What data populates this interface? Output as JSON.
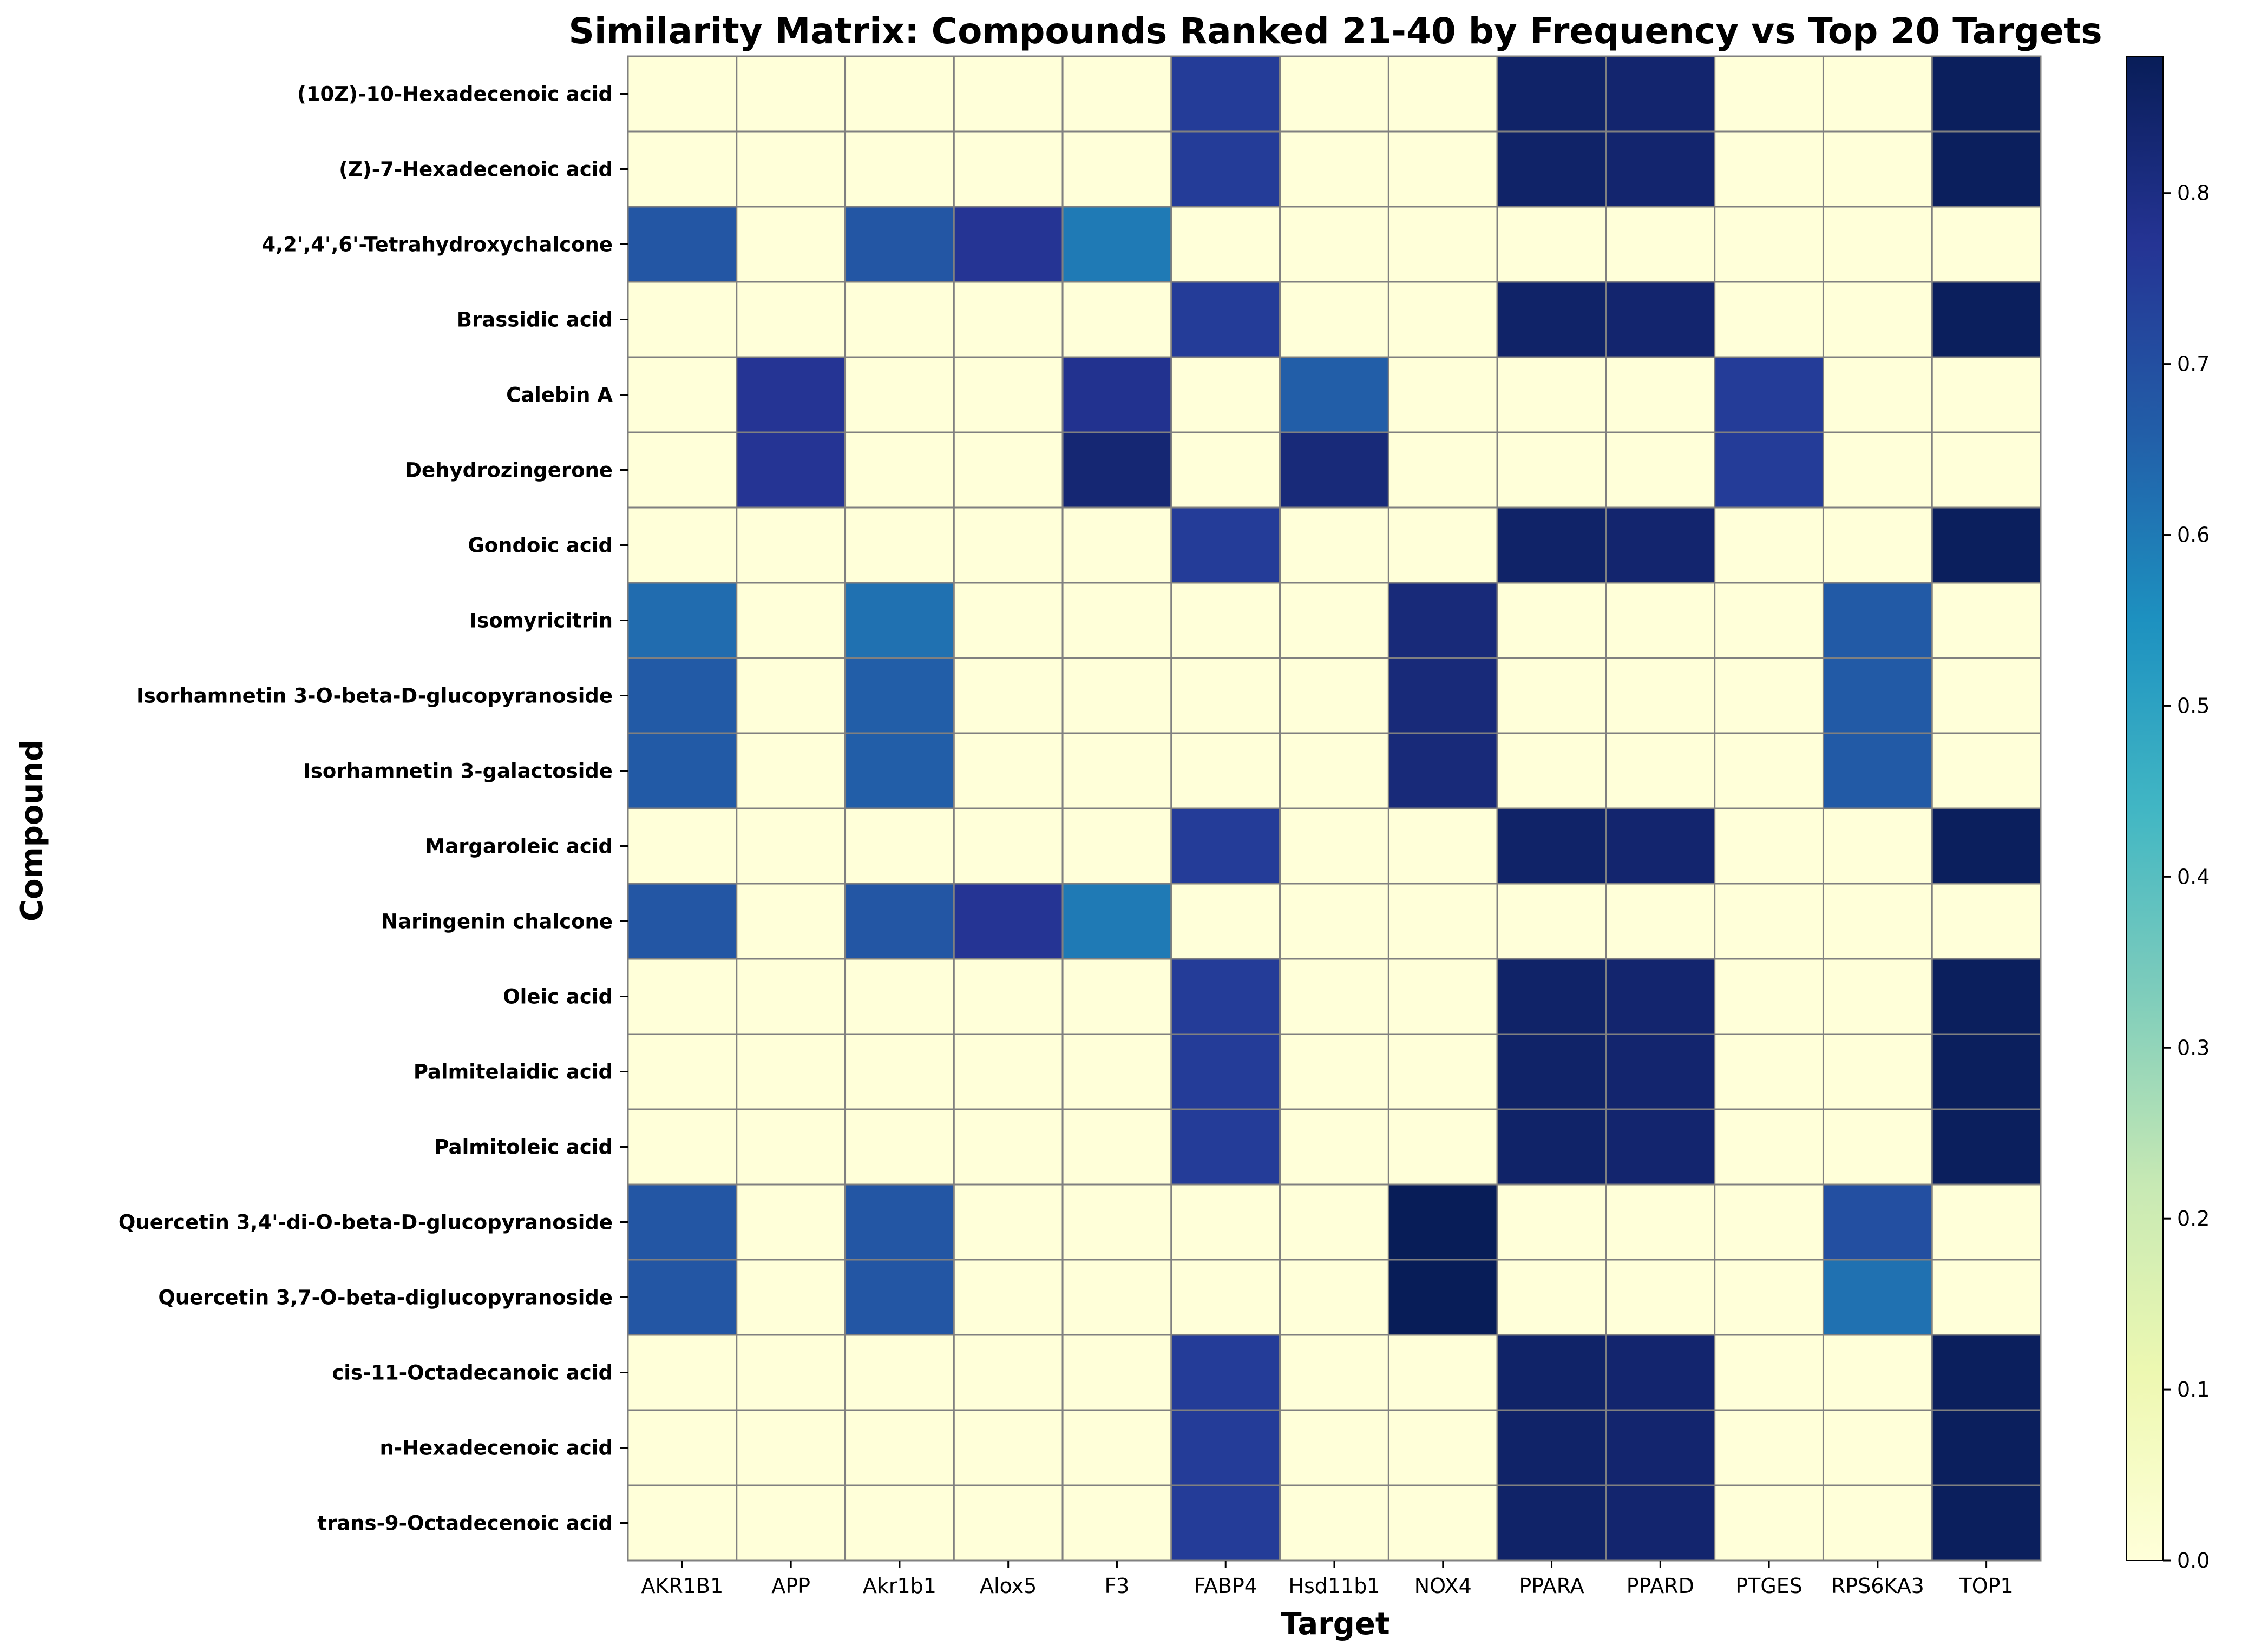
{
  "chart_data": {
    "type": "heatmap",
    "title": "Similarity Matrix: Compounds Ranked 21-40 by Frequency vs Top 20 Targets",
    "xlabel": "Target",
    "ylabel": "Compound",
    "colormap": "YlGnBu",
    "vmin": 0,
    "vmax": 0.88,
    "colorbar_ticks": [
      "0.0",
      "0.1",
      "0.2",
      "0.3",
      "0.4",
      "0.5",
      "0.6",
      "0.7",
      "0.8"
    ],
    "colorbar_tick_values": [
      0,
      0.1,
      0.2,
      0.3,
      0.4,
      0.5,
      0.6,
      0.7,
      0.8
    ],
    "cell_border_color": "#808080",
    "targets": [
      "AKR1B1",
      "APP",
      "Akr1b1",
      "Alox5",
      "F3",
      "FABP4",
      "Hsd11b1",
      "NOX4",
      "PPARA",
      "PPARD",
      "PTGES",
      "RPS6KA3",
      "TOP1"
    ],
    "compounds": [
      "(10Z)-10-Hexadecenoic acid",
      "(Z)-7-Hexadecenoic acid",
      "4,2',4',6'-Tetrahydroxychalcone",
      "Brassidic acid",
      "Calebin A",
      "Dehydrozingerone",
      "Gondoic acid",
      "Isomyricitrin",
      "Isorhamnetin 3-O-beta-D-glucopyranoside",
      "Isorhamnetin 3-galactoside",
      "Margaroleic acid",
      "Naringenin chalcone",
      "Oleic acid",
      "Palmitelaidic acid",
      "Palmitoleic acid",
      "Quercetin 3,4'-di-O-beta-D-glucopyranoside",
      "Quercetin 3,7-O-beta-diglucopyranoside",
      "cis-11-Octadecanoic acid",
      "n-Hexadecenoic acid",
      "trans-9-Octadecenoic acid"
    ],
    "values": [
      [
        0,
        0,
        0,
        0,
        0,
        0.75,
        0,
        0,
        0.85,
        0.84,
        0,
        0,
        0.87
      ],
      [
        0,
        0,
        0,
        0,
        0,
        0.75,
        0,
        0,
        0.85,
        0.84,
        0,
        0,
        0.87
      ],
      [
        0.68,
        0,
        0.68,
        0.77,
        0.6,
        0,
        0,
        0,
        0,
        0,
        0,
        0,
        0
      ],
      [
        0,
        0,
        0,
        0,
        0,
        0.75,
        0,
        0,
        0.85,
        0.84,
        0,
        0,
        0.87
      ],
      [
        0,
        0.77,
        0,
        0,
        0.78,
        0,
        0.66,
        0,
        0,
        0,
        0.75,
        0,
        0
      ],
      [
        0,
        0.77,
        0,
        0,
        0.83,
        0,
        0.82,
        0,
        0,
        0,
        0.75,
        0,
        0
      ],
      [
        0,
        0,
        0,
        0,
        0,
        0.75,
        0,
        0,
        0.85,
        0.84,
        0,
        0,
        0.87
      ],
      [
        0.63,
        0,
        0.62,
        0,
        0,
        0,
        0,
        0.82,
        0,
        0,
        0,
        0.67,
        0
      ],
      [
        0.67,
        0,
        0.66,
        0,
        0,
        0,
        0,
        0.82,
        0,
        0,
        0,
        0.67,
        0
      ],
      [
        0.67,
        0,
        0.66,
        0,
        0,
        0,
        0,
        0.82,
        0,
        0,
        0,
        0.67,
        0
      ],
      [
        0,
        0,
        0,
        0,
        0,
        0.75,
        0,
        0,
        0.85,
        0.84,
        0,
        0,
        0.87
      ],
      [
        0.68,
        0,
        0.68,
        0.77,
        0.6,
        0,
        0,
        0,
        0,
        0,
        0,
        0,
        0
      ],
      [
        0,
        0,
        0,
        0,
        0,
        0.75,
        0,
        0,
        0.85,
        0.84,
        0,
        0,
        0.87
      ],
      [
        0,
        0,
        0,
        0,
        0,
        0.75,
        0,
        0,
        0.85,
        0.84,
        0,
        0,
        0.87
      ],
      [
        0,
        0,
        0,
        0,
        0,
        0.75,
        0,
        0,
        0.85,
        0.84,
        0,
        0,
        0.87
      ],
      [
        0.68,
        0,
        0.68,
        0,
        0,
        0,
        0,
        0.88,
        0,
        0,
        0,
        0.7,
        0
      ],
      [
        0.68,
        0,
        0.68,
        0,
        0,
        0,
        0,
        0.88,
        0,
        0,
        0,
        0.62,
        0
      ],
      [
        0,
        0,
        0,
        0,
        0,
        0.75,
        0,
        0,
        0.85,
        0.84,
        0,
        0,
        0.87
      ],
      [
        0,
        0,
        0,
        0,
        0,
        0.75,
        0,
        0,
        0.85,
        0.84,
        0,
        0,
        0.87
      ],
      [
        0,
        0,
        0,
        0,
        0,
        0.75,
        0,
        0,
        0.85,
        0.84,
        0,
        0,
        0.87
      ]
    ]
  }
}
